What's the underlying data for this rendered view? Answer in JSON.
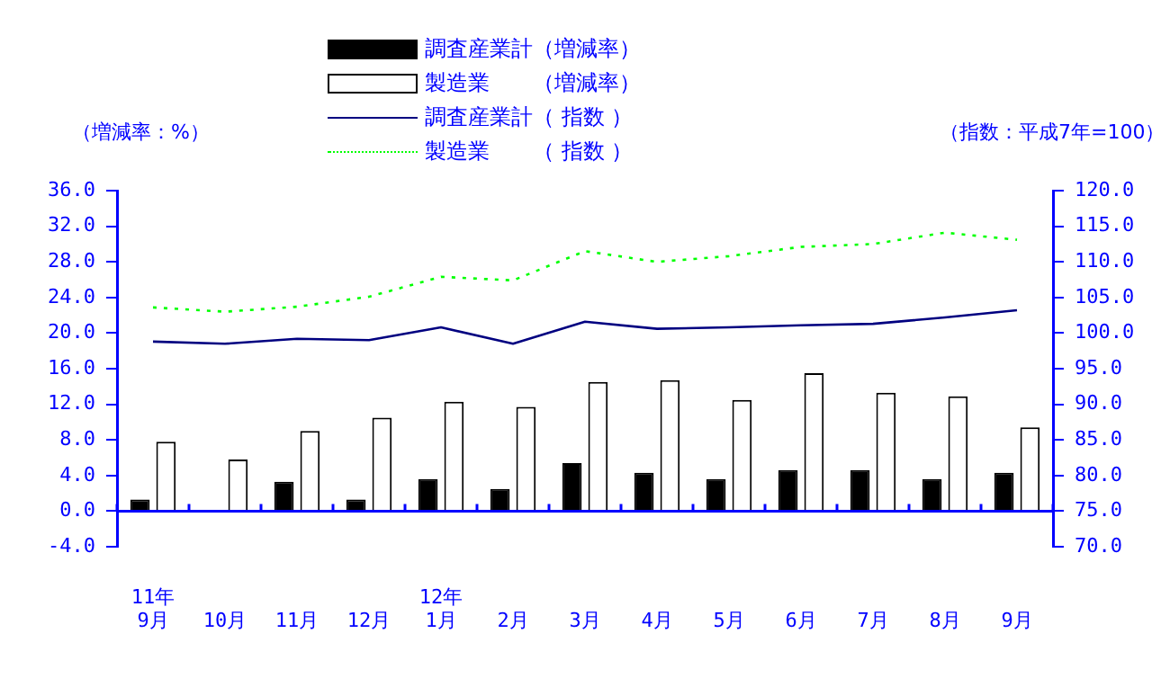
{
  "chart_data": {
    "type": "bar",
    "ylabel": "（増減率：%）",
    "y2label": "（指数：平成7年=100）",
    "categories": [
      "11年\n9月",
      "10月",
      "11月",
      "12月",
      "12年\n1月",
      "2月",
      "3月",
      "4月",
      "5月",
      "6月",
      "7月",
      "8月",
      "9月"
    ],
    "series": [
      {
        "name": "調査産業計（増減率）",
        "color": "#000000",
        "values": [
          1.3,
          null,
          3.3,
          1.3,
          3.6,
          2.5,
          5.4,
          4.3,
          3.6,
          4.6,
          4.6,
          3.6,
          4.3
        ]
      },
      {
        "name": "製造業　　（増減率）",
        "color": "#ffffff",
        "values": [
          7.8,
          5.8,
          9.0,
          10.5,
          12.3,
          11.7,
          14.5,
          14.7,
          12.5,
          15.5,
          13.3,
          12.9,
          9.4
        ]
      },
      {
        "name": "調査産業計（ 指数 ）",
        "type": "line",
        "axis": "y2",
        "color": "#000080",
        "line_style": "solid",
        "values": [
          98.8,
          98.5,
          99.2,
          99.0,
          100.8,
          98.5,
          101.6,
          100.6,
          100.8,
          101.1,
          101.3,
          102.2,
          103.2
        ]
      },
      {
        "name": "製造業　　（ 指数 ）",
        "type": "line",
        "axis": "y2",
        "color": "#00ff00",
        "line_style": "dotted",
        "values": [
          103.6,
          103.0,
          103.7,
          105.1,
          107.9,
          107.4,
          111.5,
          110.0,
          110.8,
          112.1,
          112.5,
          114.1,
          113.1
        ]
      }
    ],
    "ylim": [
      -4,
      36
    ],
    "yticks": [
      {
        "value": -4,
        "label": "-4.0"
      },
      {
        "value": 0,
        "label": "0.0"
      },
      {
        "value": 4,
        "label": "4.0"
      },
      {
        "value": 8,
        "label": "8.0"
      },
      {
        "value": 12,
        "label": "12.0"
      },
      {
        "value": 16,
        "label": "16.0"
      },
      {
        "value": 20,
        "label": "20.0"
      },
      {
        "value": 24,
        "label": "24.0"
      },
      {
        "value": 28,
        "label": "28.0"
      },
      {
        "value": 32,
        "label": "32.0"
      },
      {
        "value": 36,
        "label": "36.0"
      }
    ],
    "y2lim": [
      70,
      120
    ],
    "y2ticks": [
      {
        "value": 70,
        "label": "70.0"
      },
      {
        "value": 75,
        "label": "75.0"
      },
      {
        "value": 80,
        "label": "80.0"
      },
      {
        "value": 85,
        "label": "85.0"
      },
      {
        "value": 90,
        "label": "90.0"
      },
      {
        "value": 95,
        "label": "95.0"
      },
      {
        "value": 100,
        "label": "100.0"
      },
      {
        "value": 105,
        "label": "105.0"
      },
      {
        "value": 110,
        "label": "110.0"
      },
      {
        "value": 115,
        "label": "115.0"
      },
      {
        "value": 120,
        "label": "120.0"
      }
    ],
    "ref_lines": [
      {
        "axis": "y",
        "value": 0,
        "color": "#0000ff"
      }
    ],
    "grid": false,
    "legend": "top",
    "marker": "none"
  }
}
